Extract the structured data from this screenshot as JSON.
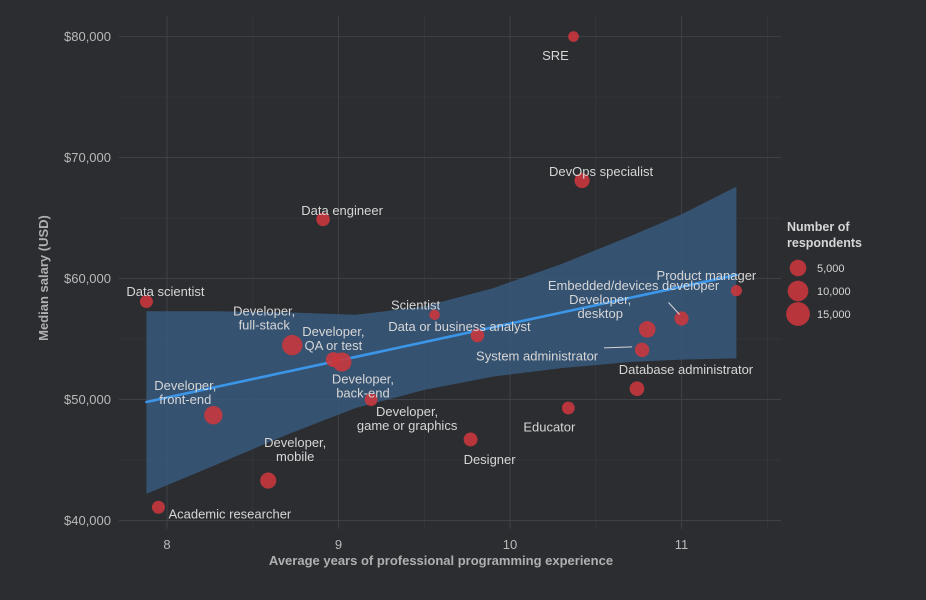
{
  "chart_data": {
    "type": "scatter",
    "xlabel": "Average years of professional programming experience",
    "ylabel": "Median salary (USD)",
    "xlim": [
      7.72,
      11.58
    ],
    "ylim": [
      39300,
      81700
    ],
    "x_ticks": [
      8,
      9,
      10,
      11
    ],
    "y_ticks": [
      40000,
      50000,
      60000,
      70000,
      80000
    ],
    "y_tick_labels": [
      "$40,000",
      "$50,000",
      "$60,000",
      "$70,000",
      "$80,000"
    ],
    "grid": true,
    "colors": {
      "point": "#c8373d",
      "trend": "#3c96e8",
      "band": "#38597d",
      "background": "#2b2d31",
      "grid": "#3e4147"
    },
    "trend_line": {
      "x": [
        7.88,
        11.32
      ],
      "y": [
        49800,
        60300
      ]
    },
    "confidence_band": {
      "x": [
        7.88,
        8.3,
        8.7,
        9.1,
        9.5,
        9.9,
        10.3,
        10.7,
        11.0,
        11.32
      ],
      "upper": [
        57300,
        57300,
        57200,
        57000,
        57700,
        59200,
        61200,
        63500,
        65300,
        67600
      ],
      "lower": [
        42200,
        44700,
        47100,
        49300,
        50800,
        51900,
        52600,
        53100,
        53300,
        53400
      ]
    },
    "points": [
      {
        "name": "SRE",
        "x": 10.37,
        "y": 80000,
        "n": 800
      },
      {
        "name": "DevOps specialist",
        "x": 10.42,
        "y": 68100,
        "n": 3600
      },
      {
        "name": "Data engineer",
        "x": 8.91,
        "y": 64900,
        "n": 2400
      },
      {
        "name": "Data scientist",
        "x": 7.88,
        "y": 58100,
        "n": 2000
      },
      {
        "name": "Product manager",
        "x": 11.32,
        "y": 59000,
        "n": 1000
      },
      {
        "name": "Scientist",
        "x": 9.56,
        "y": 57000,
        "n": 700
      },
      {
        "name": "Data or business analyst",
        "x": 9.81,
        "y": 55300,
        "n": 2400
      },
      {
        "name": "Embedded/devices developer",
        "x": 11.0,
        "y": 56700,
        "n": 2800
      },
      {
        "name": "Developer, desktop",
        "x": 10.8,
        "y": 55800,
        "n": 5000
      },
      {
        "name": "Developer, full-stack",
        "x": 8.73,
        "y": 54500,
        "n": 9500
      },
      {
        "name": "Developer, QA or test",
        "x": 8.97,
        "y": 53300,
        "n": 3500
      },
      {
        "name": "Developer, back-end",
        "x": 9.02,
        "y": 53100,
        "n": 7800
      },
      {
        "name": "System administrator",
        "x": 10.77,
        "y": 54100,
        "n": 3000
      },
      {
        "name": "Database administrator",
        "x": 10.74,
        "y": 50900,
        "n": 3200
      },
      {
        "name": "Developer, game or graphics",
        "x": 9.19,
        "y": 50000,
        "n": 1900
      },
      {
        "name": "Developer, front-end",
        "x": 8.27,
        "y": 48700,
        "n": 7000
      },
      {
        "name": "Educator",
        "x": 10.34,
        "y": 49300,
        "n": 1900
      },
      {
        "name": "Designer",
        "x": 9.77,
        "y": 46700,
        "n": 2600
      },
      {
        "name": "Developer, mobile",
        "x": 8.59,
        "y": 43300,
        "n": 4500
      },
      {
        "name": "Academic researcher",
        "x": 7.95,
        "y": 41100,
        "n": 2000
      }
    ],
    "labels": [
      {
        "point": "SRE",
        "lines": [
          "SRE"
        ]
      },
      {
        "point": "DevOps specialist",
        "lines": [
          "DevOps specialist"
        ]
      },
      {
        "point": "Data engineer",
        "lines": [
          "Data engineer"
        ]
      },
      {
        "point": "Data scientist",
        "lines": [
          "Data scientist"
        ]
      },
      {
        "point": "Product manager",
        "lines": [
          "Product manager"
        ]
      },
      {
        "point": "Scientist",
        "lines": [
          "Scientist"
        ]
      },
      {
        "point": "Data or business analyst",
        "lines": [
          "Data or business analyst"
        ]
      },
      {
        "point": "Embedded/devices developer",
        "lines": [
          "Embedded/devices developer"
        ],
        "leader": true
      },
      {
        "point": "Developer, desktop",
        "lines": [
          "Developer,",
          "desktop"
        ]
      },
      {
        "point": "Developer, full-stack",
        "lines": [
          "Developer,",
          "full-stack"
        ]
      },
      {
        "point": "Developer, QA or test",
        "lines": [
          "Developer,",
          "QA or test"
        ]
      },
      {
        "point": "Developer, back-end",
        "lines": [
          "Developer,",
          "back-end"
        ]
      },
      {
        "point": "System administrator",
        "lines": [
          "System administrator"
        ],
        "leader": true
      },
      {
        "point": "Database administrator",
        "lines": [
          "Database administrator"
        ]
      },
      {
        "point": "Developer, game or graphics",
        "lines": [
          "Developer,",
          "game or graphics"
        ]
      },
      {
        "point": "Developer, front-end",
        "lines": [
          "Developer,",
          "front-end"
        ]
      },
      {
        "point": "Educator",
        "lines": [
          "Educator"
        ]
      },
      {
        "point": "Designer",
        "lines": [
          "Designer"
        ]
      },
      {
        "point": "Developer, mobile",
        "lines": [
          "Developer,",
          "mobile"
        ]
      },
      {
        "point": "Academic researcher",
        "lines": [
          "Academic researcher"
        ]
      }
    ],
    "legend": {
      "title": [
        "Number of",
        "respondents"
      ],
      "position": "right",
      "entries": [
        {
          "label": "5,000",
          "n": 5000
        },
        {
          "label": "10,000",
          "n": 10000
        },
        {
          "label": "15,000",
          "n": 15000
        }
      ]
    }
  }
}
